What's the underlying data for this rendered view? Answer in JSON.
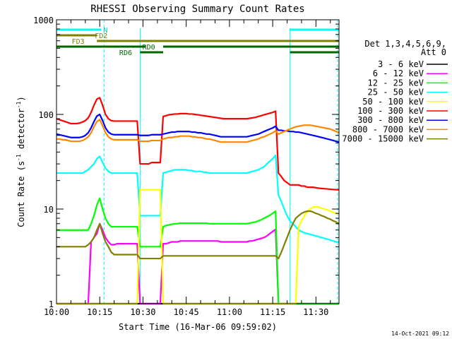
{
  "chart_data": {
    "type": "line",
    "title": "RHESSI Observing Summary Count Rates",
    "xlabel": "Start Time (16-Mar-06 09:59:02)",
    "ylabel": "Count Rate (s^-1 detector^-1)",
    "ylabel_pre": "Count Rate (s",
    "ylabel_sup1": "-1",
    "ylabel_mid": " detector",
    "ylabel_sup2": "-1",
    "ylabel_post": ")",
    "y_scale": "log",
    "ylim": [
      1,
      1000
    ],
    "xlim_minutes": [
      0,
      98
    ],
    "x_ticks": [
      {
        "min": 0,
        "label": "10:00"
      },
      {
        "min": 15,
        "label": "10:15"
      },
      {
        "min": 30,
        "label": "10:30"
      },
      {
        "min": 45,
        "label": "10:45"
      },
      {
        "min": 60,
        "label": "11:00"
      },
      {
        "min": 75,
        "label": "11:15"
      },
      {
        "min": 90,
        "label": "11:30"
      }
    ],
    "y_ticks": [
      {
        "value": 1,
        "label": "1"
      },
      {
        "value": 10,
        "label": "10"
      },
      {
        "value": 100,
        "label": "100"
      },
      {
        "value": 1000,
        "label": "1000"
      }
    ],
    "legend_position": "right",
    "legend_header": [
      "Det 1,3,4,5,6,9,",
      "Att 0"
    ],
    "series": [
      {
        "name": "3 - 6 keV",
        "color": "#000000",
        "values": [
          1,
          1,
          1,
          1,
          1,
          1,
          1,
          1,
          1,
          1,
          1,
          1,
          1,
          1,
          1,
          1,
          1,
          1,
          1,
          1,
          1,
          1,
          1,
          1,
          1,
          1,
          1,
          1,
          1,
          1,
          1,
          1,
          1,
          1,
          1,
          1,
          1,
          1,
          1,
          1,
          1,
          1,
          1,
          1,
          1,
          1,
          1,
          1,
          1,
          1,
          1,
          1,
          1,
          1,
          1,
          1,
          1,
          1,
          1,
          1,
          1,
          1,
          1,
          1,
          1,
          1,
          1,
          1,
          1,
          1,
          1,
          1,
          1,
          1,
          1,
          1,
          1,
          1,
          1,
          1,
          1,
          1,
          1,
          1,
          1,
          1,
          1,
          1,
          1,
          1,
          1,
          1,
          1,
          1,
          1,
          1,
          1,
          1,
          1
        ]
      },
      {
        "name": "6 - 12 keV",
        "color": "#ff00ff",
        "values": [
          1,
          1,
          1,
          1,
          1,
          1,
          1,
          1,
          1,
          1,
          1,
          1,
          4.5,
          5,
          5.5,
          7,
          6,
          5,
          4.5,
          4.2,
          4.2,
          4.3,
          4.3,
          4.3,
          4.3,
          4.3,
          4.3,
          4.3,
          4.3,
          1,
          1,
          1,
          1,
          1,
          1,
          1,
          1,
          4.3,
          4.3,
          4.4,
          4.5,
          4.5,
          4.5,
          4.6,
          4.6,
          4.6,
          4.6,
          4.6,
          4.6,
          4.6,
          4.6,
          4.6,
          4.6,
          4.6,
          4.6,
          4.6,
          4.6,
          4.5,
          4.5,
          4.5,
          4.5,
          4.5,
          4.5,
          4.5,
          4.5,
          4.5,
          4.5,
          4.6,
          4.6,
          4.7,
          4.8,
          4.9,
          5,
          5.2,
          5.5,
          5.8,
          6.1,
          1,
          1,
          1,
          1,
          1,
          1,
          1,
          1,
          1,
          1,
          1,
          1,
          1,
          1,
          1,
          1,
          1,
          1,
          1,
          1,
          1,
          1
        ]
      },
      {
        "name": "12 - 25 keV",
        "color": "#00ff00",
        "values": [
          6,
          6,
          6,
          6,
          6,
          6,
          6,
          6,
          6,
          6,
          6,
          6,
          7,
          8.5,
          11,
          13,
          10,
          8,
          7,
          6.5,
          6.5,
          6.5,
          6.5,
          6.5,
          6.5,
          6.5,
          6.5,
          6.5,
          6.5,
          4,
          4,
          4,
          4,
          4,
          4,
          4,
          4,
          6.5,
          6.7,
          6.8,
          6.9,
          7,
          7,
          7.1,
          7.1,
          7.1,
          7.1,
          7.1,
          7.1,
          7.1,
          7.1,
          7.1,
          7.1,
          7,
          7,
          7,
          7,
          7,
          7,
          7,
          7,
          7,
          7,
          7,
          7,
          7,
          7,
          7.1,
          7.2,
          7.3,
          7.5,
          7.7,
          8,
          8.3,
          8.6,
          9,
          9.5,
          1,
          1,
          1,
          1,
          1,
          1,
          1,
          1,
          1,
          1,
          1,
          1,
          1,
          1,
          1,
          1,
          1,
          1,
          1,
          1,
          1,
          1
        ]
      },
      {
        "name": "25 - 50 keV",
        "color": "#00ffff",
        "values": [
          24,
          24,
          24,
          24,
          24,
          24,
          24,
          24,
          24,
          24,
          25,
          26,
          28,
          30,
          34,
          36,
          31,
          27,
          25,
          24,
          24,
          24,
          24,
          24,
          24,
          24,
          24,
          24,
          24,
          8.5,
          8.5,
          8.5,
          8.5,
          8.5,
          8.5,
          8.5,
          8.5,
          24,
          24.5,
          25,
          25.5,
          26,
          26,
          26,
          26,
          26,
          25.5,
          25.5,
          25,
          25,
          25,
          24.5,
          24.5,
          24,
          24,
          24,
          24,
          24,
          24,
          24,
          24,
          24,
          24,
          24,
          24,
          24,
          24,
          24.5,
          25,
          25.5,
          26,
          27,
          28,
          30,
          32,
          34,
          37,
          14,
          12,
          10,
          8.5,
          7.5,
          7,
          6.5,
          6,
          5.8,
          5.6,
          5.5,
          5.4,
          5.3,
          5.2,
          5.1,
          5,
          4.9,
          4.8,
          4.7,
          4.6,
          4.5,
          4.5
        ]
      },
      {
        "name": "50 - 100 keV",
        "color": "#ffff00",
        "values": [
          1,
          1,
          1,
          1,
          1,
          1,
          1,
          1,
          1,
          1,
          1,
          1,
          1,
          1,
          1,
          1,
          1,
          1,
          1,
          1,
          1,
          1,
          1,
          1,
          1,
          1,
          1,
          1,
          1,
          16,
          16,
          16,
          16,
          16,
          16,
          16,
          16,
          1,
          1,
          1,
          1,
          1,
          1,
          1,
          1,
          1,
          1,
          1,
          1,
          1,
          1,
          1,
          1,
          1,
          1,
          1,
          1,
          1,
          1,
          1,
          1,
          1,
          1,
          1,
          1,
          1,
          1,
          1,
          1,
          1,
          1,
          1,
          1,
          1,
          1,
          1,
          1,
          1,
          1,
          1,
          1,
          1,
          1,
          1,
          6.5,
          7.5,
          8.5,
          9.5,
          10,
          10.5,
          10.5,
          10.5,
          10.2,
          10,
          9.8,
          9.5,
          9.2,
          9,
          8.8
        ]
      },
      {
        "name": "100 - 300 keV",
        "color": "#ff0000",
        "values": [
          90,
          88,
          86,
          84,
          82,
          80,
          80,
          80,
          81,
          83,
          86,
          92,
          105,
          125,
          145,
          150,
          125,
          100,
          90,
          86,
          85,
          85,
          85,
          85,
          85,
          85,
          85,
          85,
          85,
          30,
          30,
          30,
          30,
          31,
          31,
          31,
          31,
          95,
          97,
          99,
          100,
          101,
          101,
          102,
          102,
          102,
          101,
          101,
          100,
          99,
          98,
          97,
          96,
          95,
          94,
          93,
          92,
          91,
          90,
          90,
          90,
          90,
          90,
          90,
          90,
          90,
          90,
          91,
          92,
          93,
          95,
          97,
          99,
          101,
          103,
          105,
          108,
          24,
          22,
          20,
          19,
          18,
          18,
          18,
          18,
          17.5,
          17.5,
          17,
          17,
          17,
          16.8,
          16.6,
          16.5,
          16.4,
          16.3,
          16.2,
          16.1,
          16,
          16
        ]
      },
      {
        "name": "300 - 800 keV",
        "color": "#0000ff",
        "values": [
          62,
          61,
          60,
          59,
          58,
          57,
          57,
          57,
          57,
          58,
          60,
          64,
          72,
          84,
          96,
          100,
          86,
          72,
          65,
          62,
          61,
          61,
          61,
          61,
          61,
          61,
          61,
          61,
          61,
          60,
          60,
          60,
          60,
          61,
          61,
          61,
          61,
          62,
          63,
          64,
          65,
          65,
          66,
          66,
          66,
          66,
          66,
          65,
          65,
          64,
          64,
          63,
          62,
          62,
          61,
          60,
          59,
          58,
          58,
          58,
          58,
          58,
          58,
          58,
          58,
          58,
          58,
          59,
          60,
          61,
          62,
          64,
          66,
          68,
          70,
          72,
          75,
          68,
          68,
          67,
          67,
          66,
          66,
          65,
          65,
          64,
          63,
          62,
          61,
          60,
          59,
          58,
          57,
          56,
          55,
          54,
          53,
          52,
          51
        ]
      },
      {
        "name": "800 - 7000 keV",
        "color": "#ff8800",
        "values": [
          55,
          55,
          54,
          54,
          53,
          52,
          52,
          52,
          52,
          53,
          55,
          58,
          64,
          74,
          84,
          88,
          76,
          64,
          58,
          55,
          54,
          54,
          54,
          54,
          54,
          54,
          54,
          54,
          54,
          52,
          52,
          52,
          52,
          53,
          53,
          53,
          53,
          55,
          56,
          57,
          57,
          58,
          58,
          59,
          59,
          59,
          59,
          58,
          58,
          57,
          57,
          56,
          55,
          55,
          54,
          53,
          52,
          51,
          51,
          51,
          51,
          51,
          51,
          51,
          51,
          51,
          51,
          52,
          53,
          54,
          55,
          57,
          58,
          60,
          62,
          64,
          67,
          62,
          64,
          66,
          68,
          70,
          72,
          74,
          75,
          76,
          77,
          77,
          77,
          76,
          75,
          74,
          73,
          72,
          71,
          70,
          68,
          66,
          64
        ]
      },
      {
        "name": "7000 - 15000 keV",
        "color": "#808000",
        "values": [
          4,
          4,
          4,
          4,
          4,
          4,
          4,
          4,
          4,
          4,
          4,
          4.2,
          4.5,
          5,
          6,
          7,
          5.5,
          4.5,
          4,
          3.5,
          3.3,
          3.3,
          3.3,
          3.3,
          3.3,
          3.3,
          3.3,
          3.3,
          3.3,
          3,
          3,
          3,
          3,
          3,
          3,
          3,
          3,
          3.2,
          3.2,
          3.2,
          3.2,
          3.2,
          3.2,
          3.2,
          3.2,
          3.2,
          3.2,
          3.2,
          3.2,
          3.2,
          3.2,
          3.2,
          3.2,
          3.2,
          3.2,
          3.2,
          3.2,
          3.2,
          3.2,
          3.2,
          3.2,
          3.2,
          3.2,
          3.2,
          3.2,
          3.2,
          3.2,
          3.2,
          3.2,
          3.2,
          3.2,
          3.2,
          3.2,
          3.2,
          3.2,
          3.2,
          3.2,
          3,
          3.5,
          4.2,
          5,
          6,
          7,
          8,
          8.5,
          9,
          9.3,
          9.5,
          9.5,
          9.3,
          9,
          8.8,
          8.5,
          8.3,
          8,
          7.8,
          7.5,
          7.3,
          7
        ]
      }
    ],
    "flags": [
      {
        "label": "N",
        "color": "#00ffff",
        "label_color": "#00cccc",
        "segments": [
          [
            0,
            15.5
          ],
          [
            81,
            98
          ]
        ],
        "label_at": 17
      },
      {
        "label": "FD2",
        "color": "#808000",
        "label_color": "#808000",
        "segments": [
          [
            0,
            14
          ]
        ],
        "label_at": 15.5
      },
      {
        "label": "FD3",
        "color": "#808000",
        "label_color": "#808000",
        "segments": [
          [
            14,
            98
          ]
        ],
        "label_at": 7.5
      },
      {
        "label": "RD0",
        "color": "#006600",
        "label_color": "#006600",
        "segments": [
          [
            0,
            31
          ],
          [
            37,
            98
          ]
        ],
        "label_at": 32
      },
      {
        "label": "RD6",
        "color": "#006600",
        "label_color": "#006600",
        "segments": [
          [
            29,
            37
          ],
          [
            81,
            98
          ]
        ],
        "label_at": 24
      }
    ],
    "night_lines_min": [
      16.5,
      97.5
    ],
    "saa_lines_min": [
      29,
      81
    ],
    "timestamp": "14-Oct-2021 09:12"
  }
}
